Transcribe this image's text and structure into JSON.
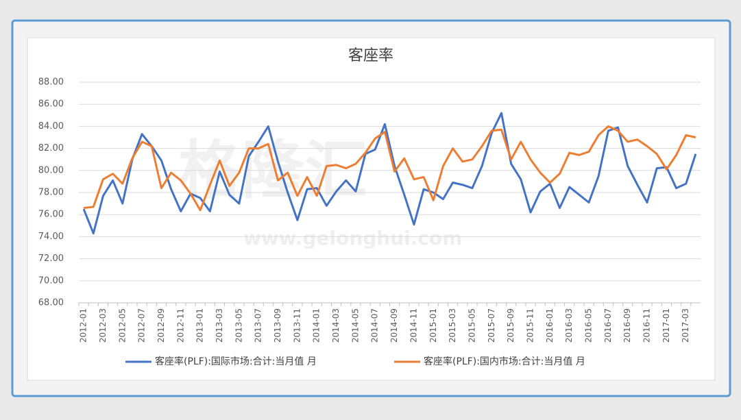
{
  "chart_data": {
    "type": "line",
    "title": "客座率",
    "watermark": [
      "格隆汇",
      "www.gelonghui.com"
    ],
    "categories": [
      "2012-01",
      null,
      "2012-03",
      null,
      "2012-05",
      null,
      "2012-07",
      null,
      "2012-09",
      null,
      "2012-11",
      null,
      "2013-01",
      null,
      "2013-03",
      null,
      "2013-05",
      null,
      "2013-07",
      null,
      "2013-09",
      null,
      "2013-11",
      null,
      "2014-01",
      null,
      "2014-03",
      null,
      "2014-05",
      null,
      "2014-07",
      null,
      "2014-09",
      null,
      "2014-11",
      null,
      "2015-01",
      null,
      "2015-03",
      null,
      "2015-05",
      null,
      "2015-07",
      null,
      "2015-09",
      null,
      "2015-11",
      null,
      "2016-01",
      null,
      "2016-03",
      null,
      "2016-05",
      null,
      "2016-07",
      null,
      "2016-09",
      null,
      "2016-11",
      null,
      "2017-01",
      null,
      "2017-03",
      null
    ],
    "series": [
      {
        "name": "客座率(PLF):国际市场:合计:当月值 月",
        "color": "#4472c4",
        "values": [
          76.5,
          74.3,
          77.7,
          79.1,
          77.0,
          81.0,
          83.3,
          82.2,
          80.9,
          78.3,
          76.3,
          77.9,
          77.5,
          76.3,
          79.9,
          77.8,
          77.0,
          81.3,
          82.6,
          84.0,
          80.8,
          78.0,
          75.5,
          78.3,
          78.4,
          76.8,
          78.1,
          79.1,
          78.1,
          81.5,
          81.9,
          84.2,
          80.4,
          77.8,
          75.1,
          78.3,
          78.0,
          77.4,
          78.9,
          78.7,
          78.4,
          80.4,
          83.4,
          85.2,
          80.6,
          79.2,
          76.2,
          78.1,
          78.8,
          76.6,
          78.5,
          77.8,
          77.1,
          79.5,
          83.6,
          83.9,
          80.4,
          78.7,
          77.1,
          80.2,
          80.3,
          78.4,
          78.8,
          81.5
        ]
      },
      {
        "name": "客座率(PLF):国内市场:合计:当月值 月",
        "color": "#ed7d31",
        "values": [
          76.6,
          76.7,
          79.2,
          79.7,
          78.8,
          81.1,
          82.6,
          82.2,
          78.4,
          79.8,
          79.1,
          77.9,
          76.4,
          78.7,
          80.9,
          78.6,
          79.8,
          82.0,
          82.0,
          82.4,
          79.1,
          79.8,
          77.7,
          79.4,
          77.7,
          80.4,
          80.5,
          80.2,
          80.6,
          81.6,
          82.9,
          83.5,
          79.9,
          81.1,
          79.2,
          79.4,
          77.3,
          80.4,
          82.0,
          80.8,
          81.0,
          82.2,
          83.6,
          83.7,
          81.0,
          82.6,
          81.0,
          79.8,
          78.9,
          79.7,
          81.6,
          81.4,
          81.7,
          83.2,
          84.0,
          83.6,
          82.6,
          82.8,
          82.2,
          81.5,
          80.1,
          81.4,
          83.2,
          83.0
        ]
      }
    ],
    "ylim": [
      68,
      88
    ],
    "yticks": [
      {
        "value": 68,
        "label": "68.00"
      },
      {
        "value": 70,
        "label": "70.00"
      },
      {
        "value": 72,
        "label": "72.00"
      },
      {
        "value": 74,
        "label": "74.00"
      },
      {
        "value": 76,
        "label": "76.00"
      },
      {
        "value": 78,
        "label": "78.00"
      },
      {
        "value": 80,
        "label": "80.00"
      },
      {
        "value": 82,
        "label": "82.00"
      },
      {
        "value": 84,
        "label": "84.00"
      },
      {
        "value": 86,
        "label": "86.00"
      },
      {
        "value": 88,
        "label": "88.00"
      }
    ],
    "grid": true,
    "legend": "bottom"
  }
}
